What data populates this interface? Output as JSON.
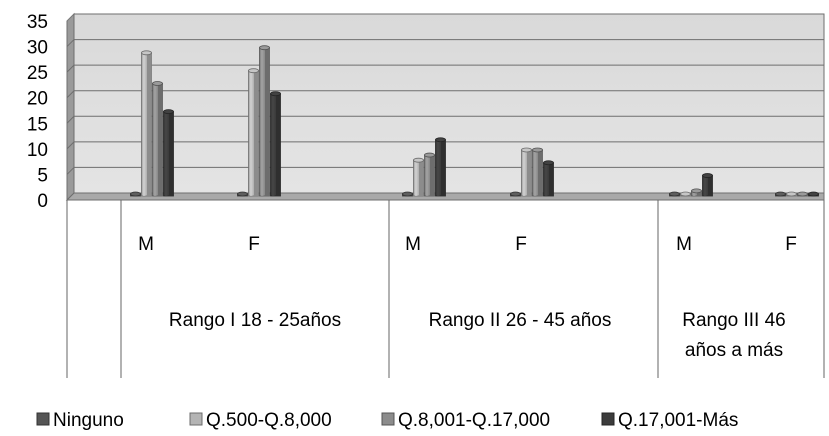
{
  "chart_data": {
    "type": "bar",
    "title": "",
    "xlabel": "",
    "ylabel": "",
    "ylim": [
      0,
      35
    ],
    "yticks": [
      "0",
      "5",
      "10",
      "15",
      "20",
      "25",
      "30",
      "35"
    ],
    "grid": true,
    "legend_position": "bottom",
    "categories": [
      "M",
      "F",
      "M",
      "F",
      "M",
      "F"
    ],
    "groups": [
      "Rango I   18 - 25años",
      "Rango II    26 - 45 años",
      "Rango III   46 años a más"
    ],
    "series": [
      {
        "name": "Ninguno",
        "color": "#555555",
        "values": [
          0,
          0,
          0,
          0,
          0,
          0
        ]
      },
      {
        "name": "Q.500-Q.8,000",
        "color": "#b4b4b4",
        "values": [
          28,
          24.5,
          7,
          9,
          0,
          0
        ]
      },
      {
        "name": "Q.8,001-Q.17,000",
        "color": "#8c8c8c",
        "values": [
          22,
          29,
          8,
          9,
          1,
          0
        ]
      },
      {
        "name": "Q.17,001-Más",
        "color": "#3c3c3c",
        "values": [
          16.5,
          20,
          11,
          6.5,
          4,
          0
        ]
      }
    ]
  }
}
